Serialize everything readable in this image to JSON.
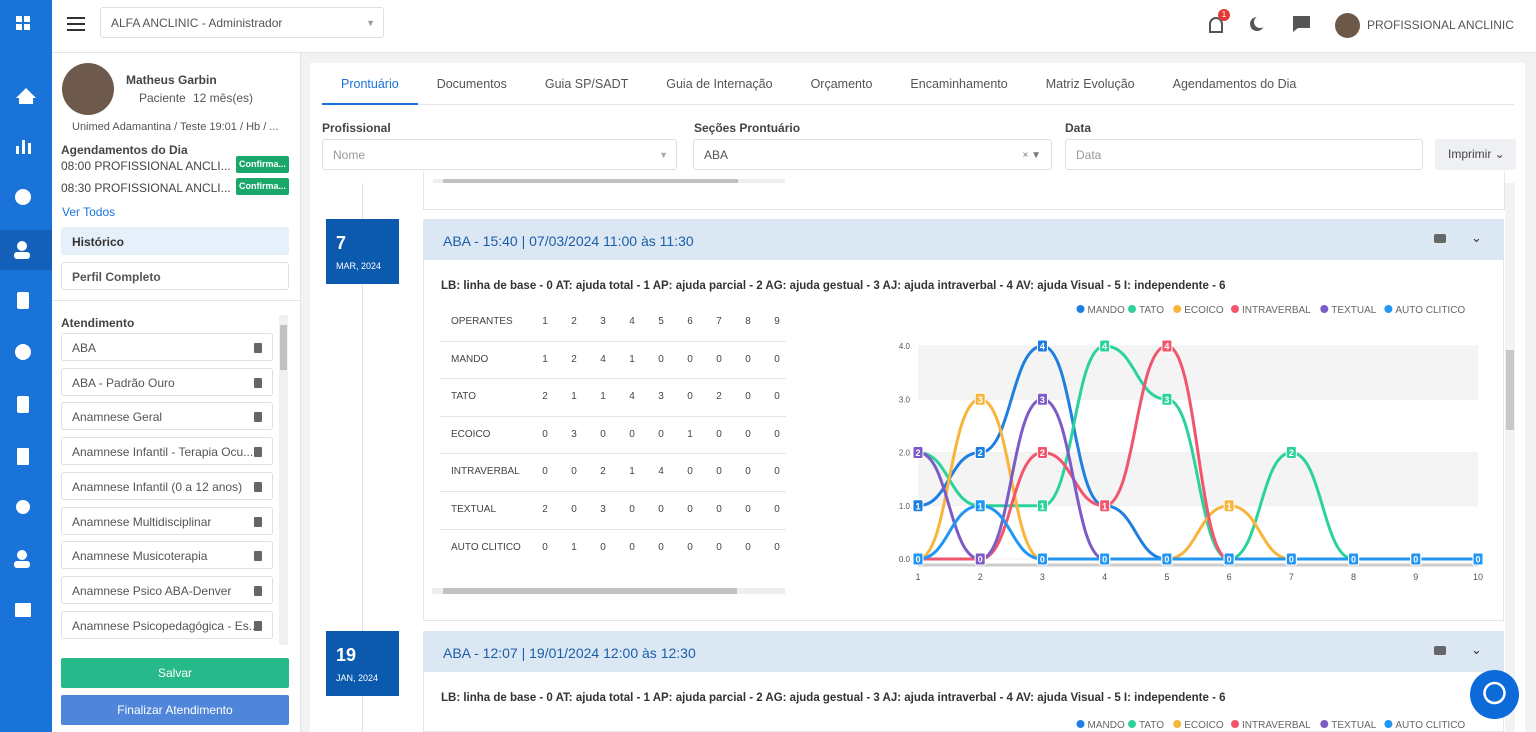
{
  "topbar": {
    "clinic_select": "ALFA ANCLINIC - Administrador",
    "notification_count": 1,
    "user": "PROFISSIONAL ANCLINIC"
  },
  "patient": {
    "name": "Matheus Garbin",
    "role": "Paciente",
    "age": "12 mês(es)",
    "insurance": "Unimed Adamantina / Teste 19:01 / Hb / ..."
  },
  "appointments": {
    "title": "Agendamentos do Dia",
    "items": [
      {
        "text": "08:00 PROFISSIONAL ANCLI...",
        "status": "Confirma..."
      },
      {
        "text": "08:30 PROFISSIONAL ANCLI...",
        "status": "Confirma..."
      }
    ],
    "see_all": "Ver Todos"
  },
  "nav": [
    "Histórico",
    "Perfil Completo"
  ],
  "attendance": {
    "title": "Atendimento",
    "items": [
      "ABA",
      "ABA - Padrão Ouro",
      "Anamnese Geral",
      "Anamnese Infantil - Terapia Ocu...",
      "Anamnese Infantil (0 a 12 anos)",
      "Anamnese Multidisciplinar",
      "Anamnese Musicoterapia",
      "Anamnese Psico ABA-Denver",
      "Anamnese Psicopedagógica - Es..."
    ]
  },
  "buttons": {
    "save": "Salvar",
    "finish": "Finalizar Atendimento"
  },
  "tabs": [
    "Prontuário",
    "Documentos",
    "Guia SP/SADT",
    "Guia de Internação",
    "Orçamento",
    "Encaminhamento",
    "Matriz Evolução",
    "Agendamentos do Dia"
  ],
  "filters": {
    "professional_label": "Profissional",
    "professional_placeholder": "Nome",
    "sections_label": "Seções Prontuário",
    "sections_value": "ABA",
    "date_label": "Data",
    "date_placeholder": "Data",
    "print": "Imprimir"
  },
  "entries": [
    {
      "day": "7",
      "month_year": "MAR, 2024",
      "title": "ABA - 15:40 | 07/03/2024 11:00 às 11:30",
      "legend_text": "LB: linha de base - 0 AT: ajuda total - 1 AP: ajuda parcial - 2 AG: ajuda gestual - 3 AJ: ajuda intraverbal - 4 AV: ajuda Visual - 5 I: independente - 6",
      "table_header": "OPERANTES"
    },
    {
      "day": "19",
      "month_year": "JAN, 2024",
      "title": "ABA - 12:07 | 19/01/2024 12:00 às 12:30",
      "legend_text": "LB: linha de base - 0 AT: ajuda total - 1 AP: ajuda parcial - 2 AG: ajuda gestual - 3 AJ: ajuda intraverbal - 4 AV: ajuda Visual - 5 I: independente - 6"
    }
  ],
  "chart_data": {
    "type": "line",
    "x": [
      1,
      2,
      3,
      4,
      5,
      6,
      7,
      8,
      9,
      10
    ],
    "series": [
      {
        "name": "MANDO",
        "color": "#1e7fe0",
        "values": [
          1,
          2,
          4,
          1,
          0,
          0,
          0,
          0,
          0,
          0
        ]
      },
      {
        "name": "TATO",
        "color": "#2bd39b",
        "values": [
          2,
          1,
          1,
          4,
          3,
          0,
          2,
          0,
          0,
          0
        ]
      },
      {
        "name": "ECOICO",
        "color": "#f7b53b",
        "values": [
          0,
          3,
          0,
          0,
          0,
          1,
          0,
          0,
          0,
          0
        ]
      },
      {
        "name": "INTRAVERBAL",
        "color": "#f1566c",
        "values": [
          0,
          0,
          2,
          1,
          4,
          0,
          0,
          0,
          0,
          0
        ]
      },
      {
        "name": "TEXTUAL",
        "color": "#7d5bc6",
        "values": [
          2,
          0,
          3,
          0,
          0,
          0,
          0,
          0,
          0,
          0
        ]
      },
      {
        "name": "AUTO CLITICO",
        "color": "#2196f3",
        "values": [
          0,
          1,
          0,
          0,
          0,
          0,
          0,
          0,
          0,
          0
        ]
      }
    ],
    "xlim": [
      1,
      10
    ],
    "xticks": [
      1,
      2,
      3,
      4,
      5,
      6,
      7,
      8,
      9,
      10
    ],
    "ylim": [
      0,
      4
    ],
    "yticks": [
      {
        "value": 0,
        "label": "0.0"
      },
      {
        "value": 1,
        "label": "1.0"
      },
      {
        "value": 2,
        "label": "2.0"
      },
      {
        "value": 3,
        "label": "3.0"
      },
      {
        "value": 4,
        "label": "4.0"
      }
    ],
    "grid": true
  }
}
